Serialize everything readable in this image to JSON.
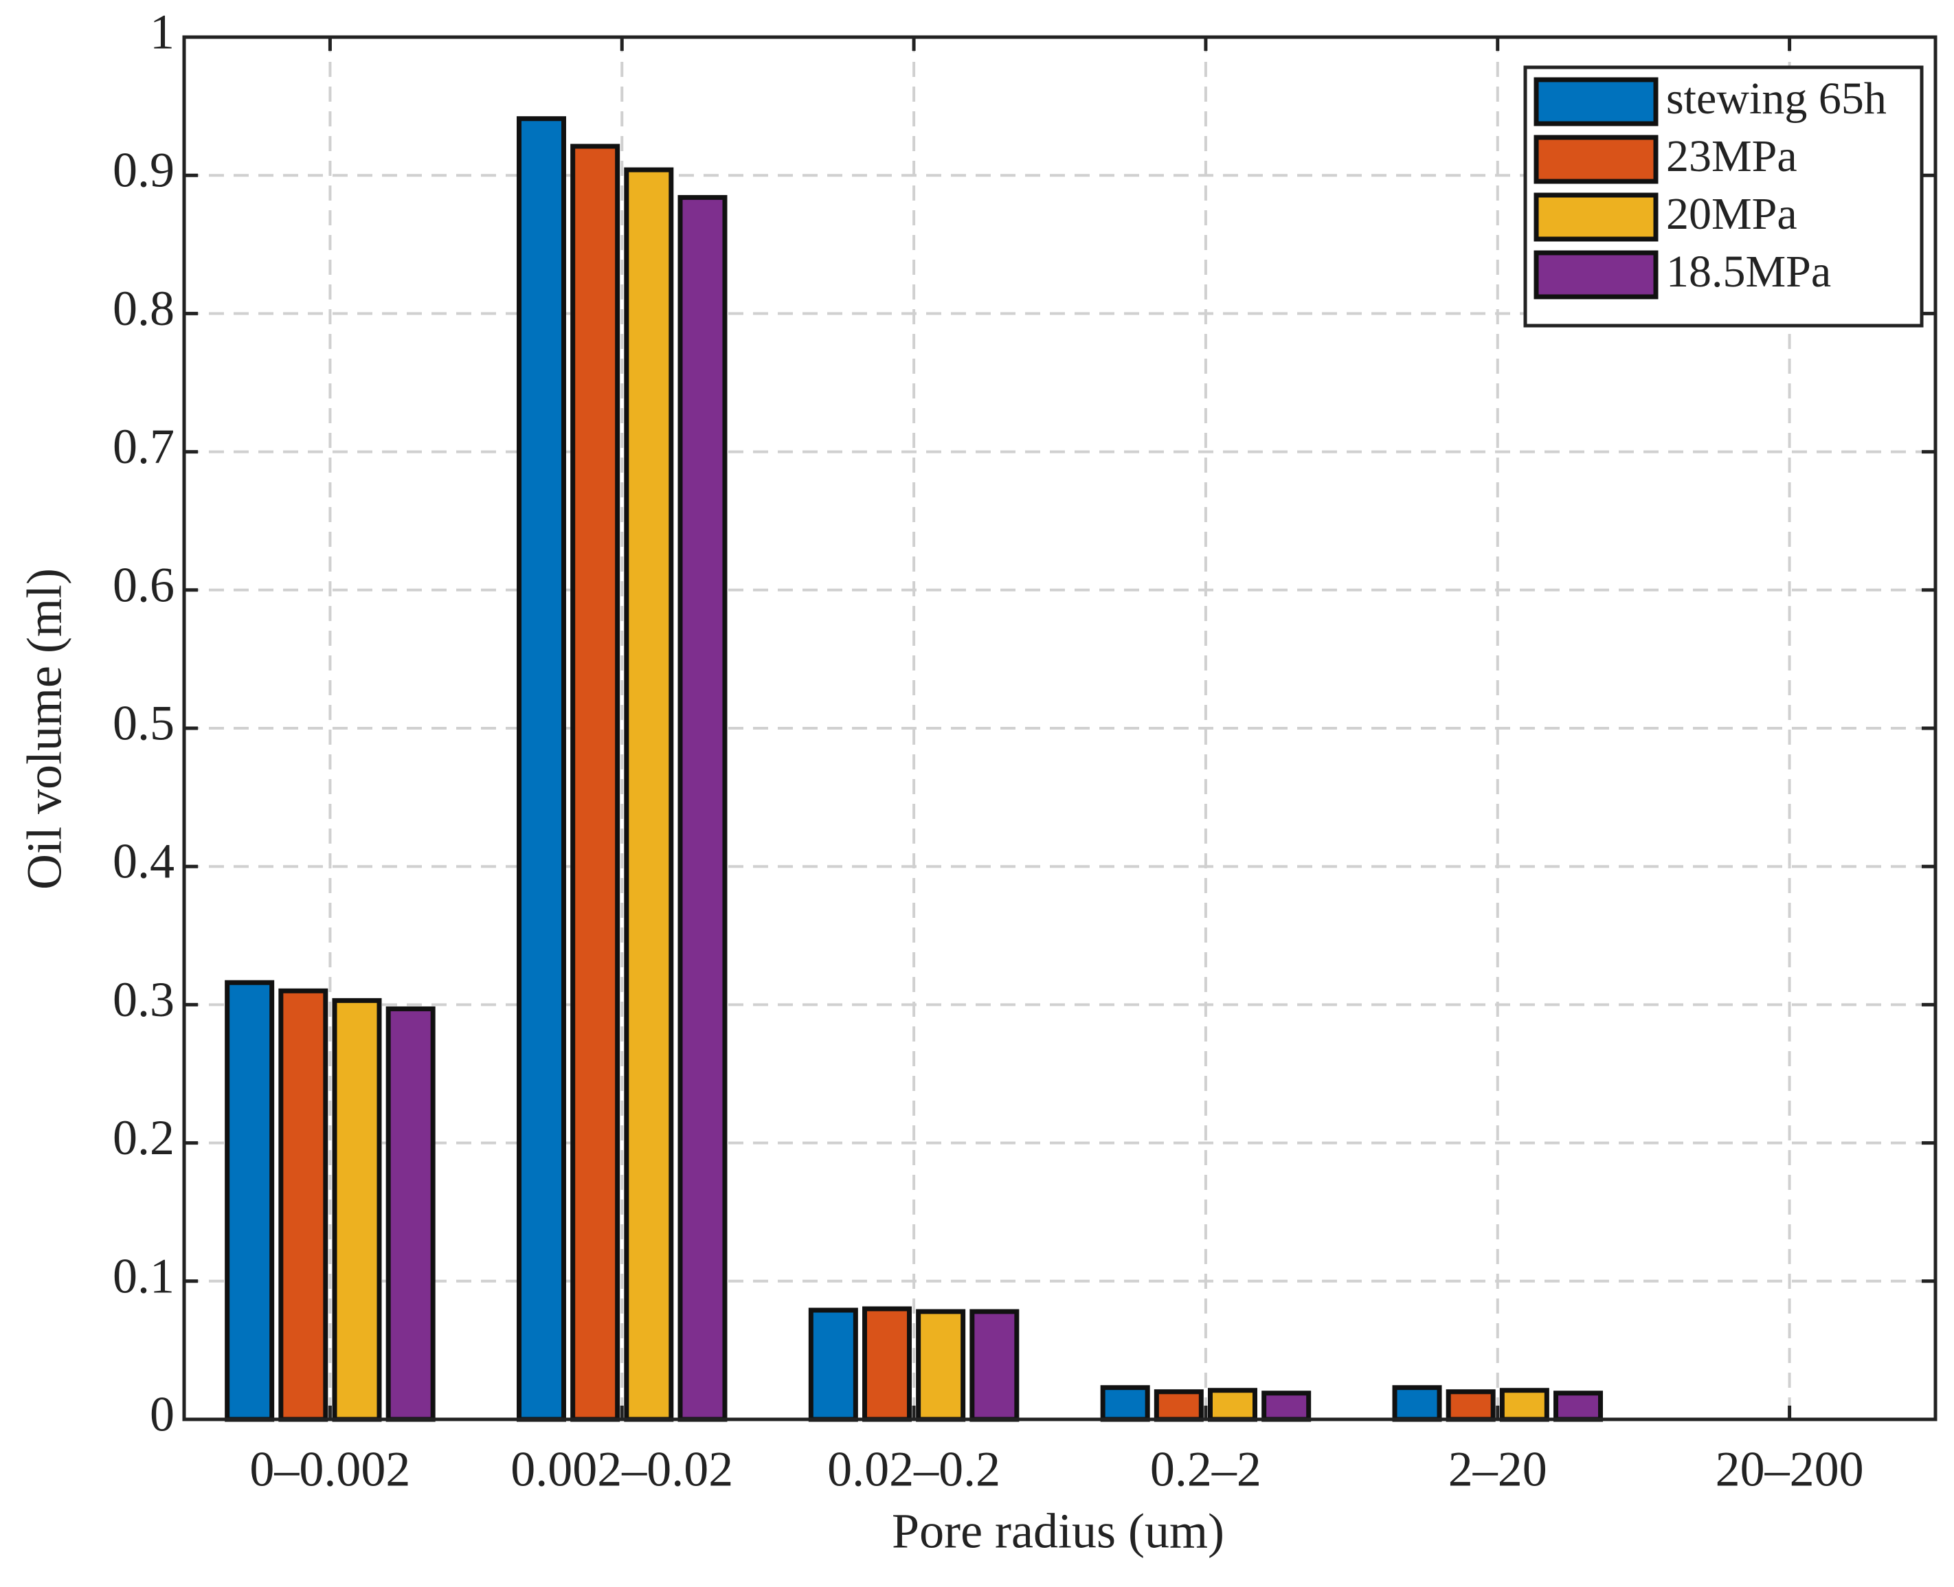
{
  "chart_data": {
    "type": "bar",
    "xlabel": "Pore radius (um)",
    "ylabel": "Oil volume (ml)",
    "categories": [
      "0–0.002",
      "0.002–0.02",
      "0.02–0.2",
      "0.2–2",
      "2–20",
      "20–200"
    ],
    "series": [
      {
        "name": "stewing 65h",
        "color": "#0072bd",
        "values": [
          0.316,
          0.941,
          0.079,
          0.023,
          0.023,
          0
        ]
      },
      {
        "name": "23MPa",
        "color": "#d95319",
        "values": [
          0.31,
          0.921,
          0.08,
          0.02,
          0.02,
          0
        ]
      },
      {
        "name": "20MPa",
        "color": "#edb120",
        "values": [
          0.303,
          0.904,
          0.078,
          0.021,
          0.021,
          0
        ]
      },
      {
        "name": "18.5MPa",
        "color": "#7e2f8e",
        "values": [
          0.297,
          0.884,
          0.078,
          0.019,
          0.019,
          0
        ]
      }
    ],
    "ylim": [
      0,
      1
    ],
    "yticks": [
      0,
      0.1,
      0.2,
      0.3,
      0.4,
      0.5,
      0.6,
      0.7,
      0.8,
      0.9,
      1
    ],
    "grid": true,
    "legend": "northeast"
  }
}
